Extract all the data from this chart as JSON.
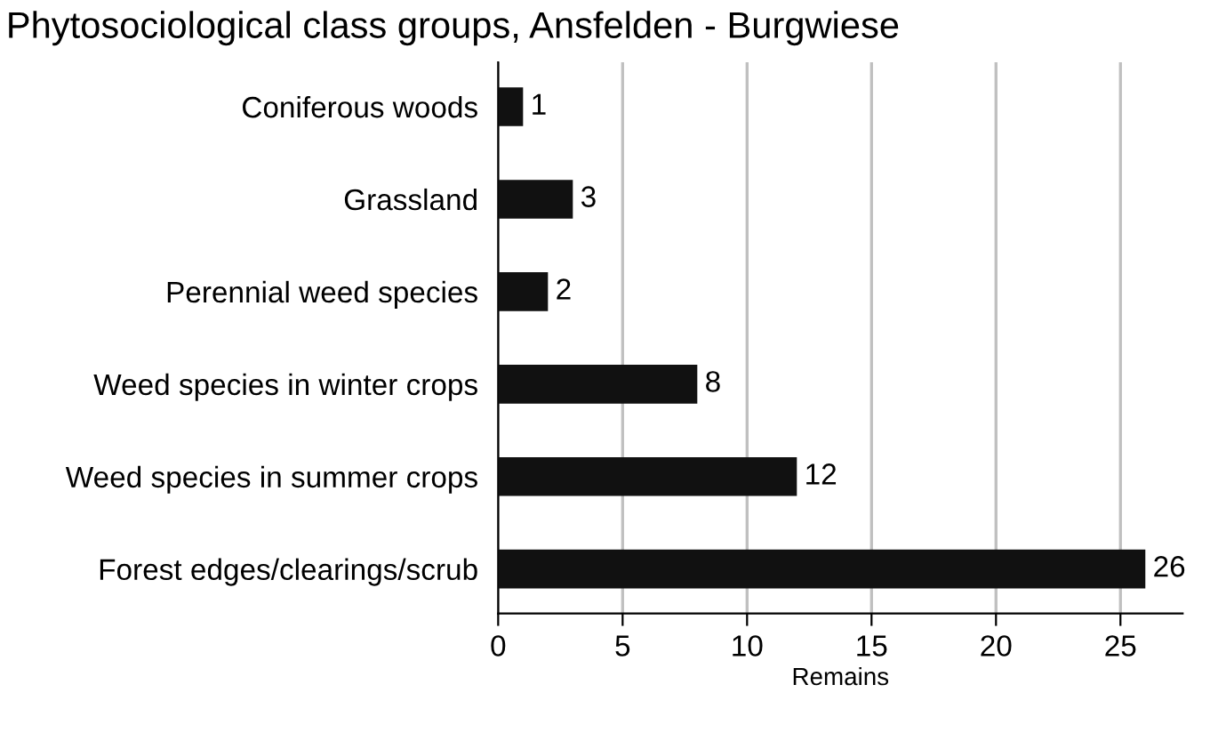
{
  "chart_data": {
    "type": "bar",
    "orientation": "horizontal",
    "title": "Phytosociological class groups, Ansfelden - Burgwiese",
    "xlabel": "Remains",
    "categories": [
      "Coniferous woods",
      "Grassland",
      "Perennial weed species",
      "Weed species in winter crops",
      "Weed species in summer crops",
      "Forest edges/clearings/scrub"
    ],
    "values": [
      1,
      3,
      2,
      8,
      12,
      26
    ],
    "color": "#111111",
    "xlim": [
      0,
      27.5
    ],
    "xticks": [
      0,
      5,
      10,
      15,
      20,
      25
    ],
    "grid": "x",
    "data_labels": true
  }
}
